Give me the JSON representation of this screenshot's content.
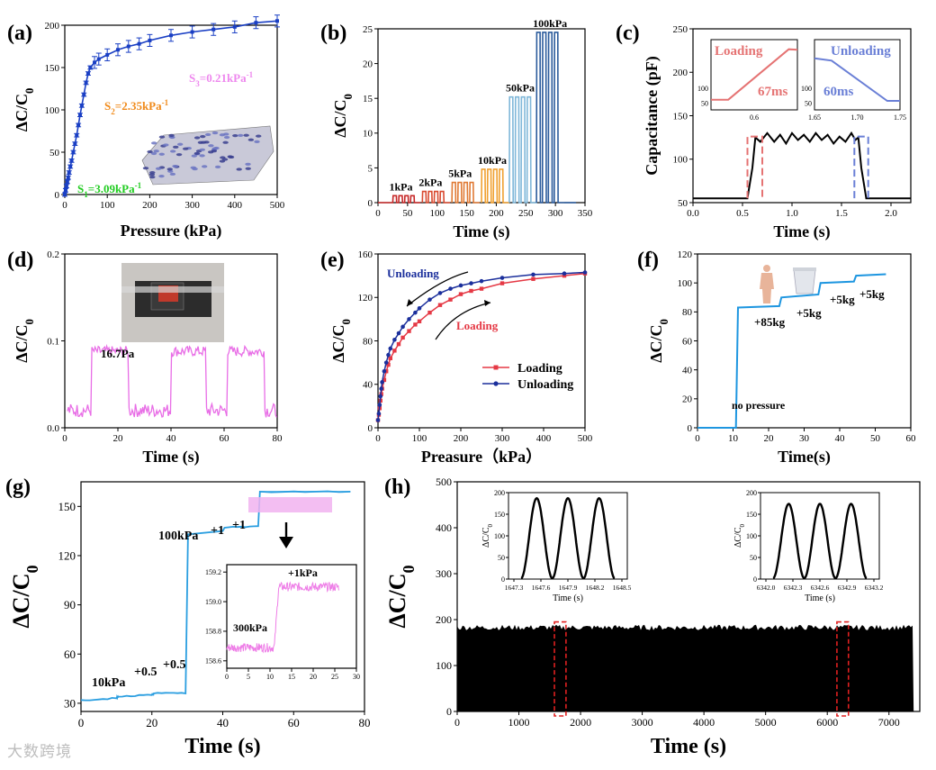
{
  "watermark": "大数跨境",
  "colors": {
    "a": "#1a3fc4",
    "b_low": "#c62828",
    "b_mid": "#f0a030",
    "b_high": "#2b5b9c",
    "c_load": "#e57373",
    "c_unload": "#6a7fd6",
    "d": "#e86de6",
    "e_load": "#e53945",
    "e_unload": "#1b2f9c",
    "f": "#1e96e0",
    "g": "#2a9ee0",
    "g_inset": "#ee7ee7",
    "h": "#000000",
    "aS1": "#22cc22",
    "aS2": "#f08a1a",
    "aS3": "#ee88ee"
  },
  "chart_data": [
    {
      "id": "a",
      "panel_label": "(a)",
      "type": "line",
      "xlabel": "Pressure (kPa)",
      "ylabel": "ΔC/C0",
      "xlim": [
        0,
        500
      ],
      "ylim": [
        0,
        200
      ],
      "xticks": [
        0,
        100,
        200,
        300,
        400,
        500
      ],
      "yticks": [
        0,
        50,
        100,
        150,
        200
      ],
      "x": [
        0,
        2,
        4,
        6,
        8,
        10,
        13,
        16,
        20,
        24,
        28,
        32,
        36,
        40,
        45,
        50,
        55,
        60,
        70,
        80,
        100,
        125,
        150,
        175,
        200,
        250,
        300,
        350,
        400,
        450,
        500
      ],
      "values": [
        0,
        5,
        10,
        15,
        20,
        26,
        33,
        40,
        50,
        60,
        70,
        82,
        94,
        105,
        118,
        132,
        143,
        150,
        156,
        160,
        165,
        171,
        175,
        178,
        182,
        188,
        192,
        195,
        198,
        203,
        205
      ],
      "annotations": [
        {
          "text": "S1=3.09kPa-1",
          "pos": "bottom-left"
        },
        {
          "text": "S2=2.35kPa-1",
          "pos": "middle"
        },
        {
          "text": "S3=0.21kPa-1",
          "pos": "top-right"
        }
      ]
    },
    {
      "id": "b",
      "panel_label": "(b)",
      "type": "line",
      "xlabel": "Time (s)",
      "ylabel": "ΔC/C0",
      "xlim": [
        0,
        350
      ],
      "ylim": [
        0,
        25
      ],
      "xticks": [
        0,
        50,
        100,
        150,
        200,
        250,
        300,
        350
      ],
      "yticks": [
        0,
        5,
        10,
        15,
        20,
        25
      ],
      "series": [
        {
          "name": "1kPa",
          "start": 25,
          "height": 1
        },
        {
          "name": "2kPa",
          "start": 75,
          "height": 1.6
        },
        {
          "name": "5kPa",
          "start": 125,
          "height": 2.9
        },
        {
          "name": "10kPa",
          "start": 175,
          "height": 4.8
        },
        {
          "name": "50kPa",
          "start": 222,
          "height": 15.2
        },
        {
          "name": "100kPa",
          "start": 268,
          "height": 24.5
        }
      ]
    },
    {
      "id": "c",
      "panel_label": "(c)",
      "type": "line",
      "xlabel": "Time (s)",
      "ylabel": "Capacitance (pF)",
      "xlim": [
        0,
        2.2
      ],
      "ylim": [
        50,
        250
      ],
      "xticks": [
        0.0,
        0.5,
        1.0,
        1.5,
        2.0
      ],
      "yticks": [
        50,
        100,
        150,
        200,
        250
      ],
      "x": [
        0,
        0.2,
        0.4,
        0.55,
        0.6,
        0.63,
        0.68,
        0.75,
        0.82,
        0.88,
        0.94,
        1.0,
        1.06,
        1.12,
        1.18,
        1.24,
        1.3,
        1.36,
        1.42,
        1.48,
        1.54,
        1.6,
        1.64,
        1.67,
        1.7,
        1.75,
        1.8,
        2.0,
        2.2
      ],
      "values": [
        55,
        55,
        55,
        55,
        90,
        125,
        120,
        130,
        120,
        128,
        118,
        130,
        122,
        128,
        120,
        130,
        122,
        128,
        118,
        126,
        120,
        130,
        122,
        125,
        90,
        55,
        55,
        55,
        55
      ],
      "insets": [
        {
          "title": "Loading",
          "time": "67ms",
          "xticks": [
            0.6
          ],
          "yticks": [
            50,
            100
          ]
        },
        {
          "title": "Unloading",
          "time": "60ms",
          "xticks": [
            1.65,
            1.7,
            1.75
          ],
          "yticks": [
            50,
            100
          ]
        }
      ]
    },
    {
      "id": "d",
      "panel_label": "(d)",
      "type": "line",
      "xlabel": "Time (s)",
      "ylabel": "ΔC/C0",
      "xlim": [
        0,
        80
      ],
      "ylim": [
        0,
        0.2
      ],
      "xticks": [
        0,
        20,
        40,
        60,
        80
      ],
      "yticks": [
        0.0,
        0.1,
        0.2
      ],
      "pulses": [
        [
          10,
          24
        ],
        [
          40,
          53
        ],
        [
          61,
          75
        ]
      ],
      "pulse_height": 0.088,
      "base": 0.02,
      "annotation": "16.7Pa"
    },
    {
      "id": "e",
      "panel_label": "(e)",
      "type": "line",
      "xlabel": "Preasure（kPa）",
      "ylabel": "ΔC/C0",
      "xlim": [
        0,
        500
      ],
      "ylim": [
        0,
        160
      ],
      "xticks": [
        0,
        100,
        200,
        300,
        400,
        500
      ],
      "yticks": [
        0,
        40,
        80,
        120,
        160
      ],
      "x": [
        0,
        2,
        4,
        6,
        8,
        10,
        15,
        20,
        25,
        30,
        40,
        50,
        60,
        75,
        90,
        100,
        125,
        150,
        175,
        200,
        225,
        250,
        300,
        375,
        450,
        500
      ],
      "series": [
        {
          "name": "Loading",
          "values": [
            7,
            12,
            18,
            25,
            31,
            36,
            44,
            52,
            58,
            64,
            71,
            77,
            83,
            89,
            95,
            98,
            106,
            113,
            118,
            123,
            126,
            128,
            133,
            137,
            140,
            142
          ]
        },
        {
          "name": "Unloading",
          "values": [
            7,
            13,
            21,
            29,
            36,
            42,
            52,
            60,
            67,
            73,
            81,
            87,
            93,
            100,
            106,
            110,
            118,
            124,
            128,
            131,
            133,
            135,
            138,
            141,
            142,
            143
          ]
        }
      ],
      "annotations": [
        "Unloading",
        "Loading"
      ]
    },
    {
      "id": "f",
      "panel_label": "(f)",
      "type": "line",
      "xlabel": "Time(s)",
      "ylabel": "ΔC/C0",
      "xlim": [
        0,
        60
      ],
      "ylim": [
        0,
        120
      ],
      "xticks": [
        0,
        10,
        20,
        30,
        40,
        50,
        60
      ],
      "yticks": [
        0,
        20,
        40,
        60,
        80,
        100,
        120
      ],
      "x": [
        0,
        10.8,
        11.4,
        23,
        23.6,
        34,
        34.6,
        44,
        44.6,
        53
      ],
      "values": [
        0,
        0,
        83,
        84,
        90,
        92,
        100,
        101,
        105,
        106
      ],
      "annotations": [
        "no pressure",
        "+85kg",
        "+5kg",
        "+5kg",
        "+5kg"
      ]
    },
    {
      "id": "g",
      "panel_label": "(g)",
      "type": "line",
      "xlabel": "Time (s)",
      "ylabel": "ΔC/C0",
      "xlim": [
        0,
        80
      ],
      "ylim": [
        25,
        165
      ],
      "xticks": [
        0,
        20,
        40,
        60,
        80
      ],
      "yticks": [
        30,
        60,
        90,
        120,
        150
      ],
      "x": [
        0,
        10,
        10.5,
        20,
        20.5,
        29.5,
        30.2,
        40,
        40.5,
        50,
        50.5,
        76
      ],
      "values": [
        32,
        33,
        34,
        35,
        36,
        36,
        133,
        135,
        137,
        138,
        159,
        159
      ],
      "annotations": [
        "10kPa",
        "+0.5",
        "+0.5",
        "100kPa",
        "+1",
        "+1"
      ],
      "inset": {
        "xlim": [
          0,
          30
        ],
        "ylim": [
          158.55,
          159.25
        ],
        "xticks": [
          0,
          5,
          10,
          15,
          20,
          25,
          30
        ],
        "yticks": [
          158.6,
          158.8,
          159.0,
          159.2
        ],
        "low": 158.69,
        "high": 159.1,
        "step_at": 11,
        "labels": [
          "300kPa",
          "+1kPa"
        ]
      }
    },
    {
      "id": "h",
      "panel_label": "(h)",
      "type": "area",
      "xlabel": "Time (s)",
      "ylabel": "ΔC/C0",
      "xlim": [
        0,
        7500
      ],
      "ylim": [
        0,
        500
      ],
      "xticks": [
        0,
        1000,
        2000,
        3000,
        4000,
        5000,
        6000,
        7000
      ],
      "yticks": [
        0,
        100,
        200,
        300,
        400,
        500
      ],
      "band": {
        "x": [
          0,
          7400
        ],
        "top": 185
      },
      "insets": [
        {
          "xticks": [
            "1647.3",
            "1647.6",
            "1647.9",
            "1648.2",
            "1648.5"
          ],
          "yticks": [
            0,
            50,
            100,
            150,
            200
          ],
          "xlabel": "Time (s)",
          "ylabel": "ΔC/C0"
        },
        {
          "xticks": [
            "6342.0",
            "6342.3",
            "6342.6",
            "6342.9",
            "6343.2"
          ],
          "yticks": [
            0,
            50,
            100,
            150,
            200
          ],
          "xlabel": "Time (s)",
          "ylabel": "ΔC/C0"
        }
      ]
    }
  ]
}
